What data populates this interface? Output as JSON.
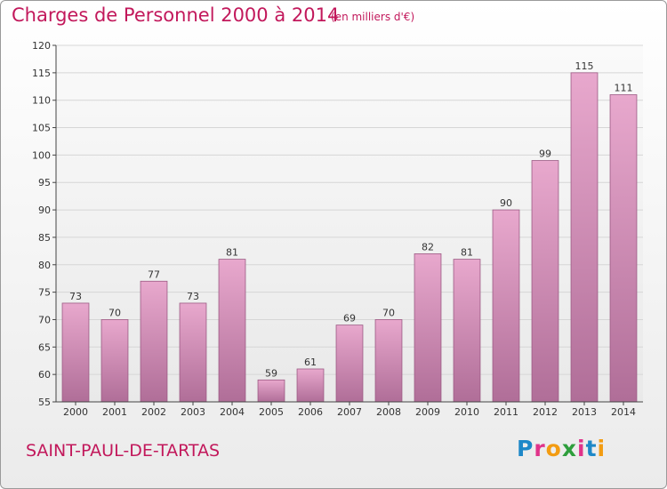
{
  "header": {
    "title": "Charges de Personnel 2000 à 2014",
    "subtitle": "(en milliers d'€)"
  },
  "footer": {
    "place": "SAINT-PAUL-DE-TARTAS",
    "logo_letters": [
      "P",
      "r",
      "o",
      "x",
      "i",
      "t",
      "i"
    ],
    "logo_colors": [
      "#1e88c8",
      "#e0338a",
      "#f39c12",
      "#2e9e3c",
      "#e0338a",
      "#1e88c8",
      "#f39c12"
    ]
  },
  "chart_data": {
    "type": "bar",
    "categories": [
      "2000",
      "2001",
      "2002",
      "2003",
      "2004",
      "2005",
      "2006",
      "2007",
      "2008",
      "2009",
      "2010",
      "2011",
      "2012",
      "2013",
      "2014"
    ],
    "values": [
      73,
      70,
      77,
      73,
      81,
      59,
      61,
      69,
      70,
      82,
      81,
      90,
      99,
      115,
      111
    ],
    "data_labels": [
      "73",
      "70",
      "77",
      "73",
      "81",
      "59",
      "61",
      "69",
      "70",
      "82",
      "81",
      "90",
      "99",
      "115",
      "111"
    ],
    "ylim": [
      55,
      120
    ],
    "yticks": [
      "55",
      "60",
      "65",
      "70",
      "75",
      "80",
      "85",
      "90",
      "95",
      "100",
      "105",
      "110",
      "115",
      "120"
    ],
    "title": "Charges de Personnel 2000 à 2014",
    "xlabel": "",
    "ylabel": "",
    "grid": true,
    "colors": {
      "bar_top": "#e8a8cd",
      "bar_bottom": "#b06e98",
      "bar_edge": "#9c5a84",
      "grid": "#d6d6d6",
      "axis": "#444444"
    }
  }
}
